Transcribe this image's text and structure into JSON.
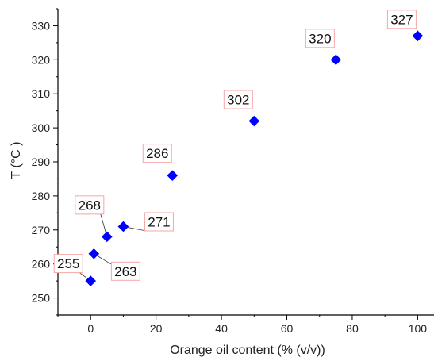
{
  "chart_data": {
    "type": "scatter",
    "title": "",
    "xlabel": "Orange oil content (% (v/v))",
    "ylabel": "T (°C )",
    "xlim": [
      -10,
      105
    ],
    "ylim": [
      245,
      335
    ],
    "xticks": [
      0,
      20,
      40,
      60,
      80,
      100
    ],
    "yticks": [
      250,
      260,
      270,
      280,
      290,
      300,
      310,
      320,
      330
    ],
    "x_minor_step": 10,
    "y_minor_step": 5,
    "grid": false,
    "legend": "none",
    "marker": "diamond",
    "colors": {
      "marker": "#0000ff",
      "label_box_border": "#f4a6a6",
      "label_box_fill": "#ffffff",
      "leader_line": "#333333",
      "axis": "#000000"
    },
    "series": [
      {
        "points": [
          {
            "x": 0,
            "y": 255,
            "label": "255"
          },
          {
            "x": 1,
            "y": 263,
            "label": "263"
          },
          {
            "x": 5,
            "y": 268,
            "label": "268"
          },
          {
            "x": 10,
            "y": 271,
            "label": "271"
          },
          {
            "x": 25,
            "y": 286,
            "label": "286"
          },
          {
            "x": 50,
            "y": 302,
            "label": "302"
          },
          {
            "x": 75,
            "y": 320,
            "label": "320"
          },
          {
            "x": 100,
            "y": 327,
            "label": "327"
          }
        ]
      }
    ]
  }
}
